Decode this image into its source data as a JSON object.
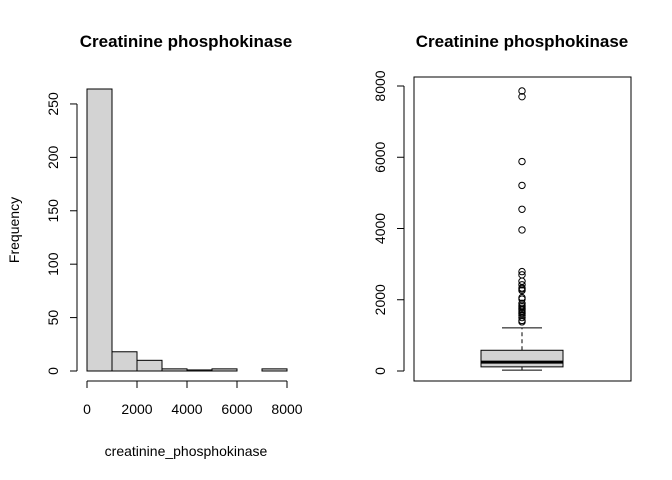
{
  "chart_data": [
    {
      "type": "bar",
      "subtype": "histogram",
      "title": "Creatinine phosphokinase",
      "xlabel": "creatinine_phosphokinase",
      "ylabel": "Frequency",
      "bins": [
        {
          "from": 0,
          "to": 1000,
          "count": 264
        },
        {
          "from": 1000,
          "to": 2000,
          "count": 18
        },
        {
          "from": 2000,
          "to": 3000,
          "count": 10
        },
        {
          "from": 3000,
          "to": 4000,
          "count": 2
        },
        {
          "from": 4000,
          "to": 5000,
          "count": 1
        },
        {
          "from": 5000,
          "to": 6000,
          "count": 2
        },
        {
          "from": 6000,
          "to": 7000,
          "count": 0
        },
        {
          "from": 7000,
          "to": 8000,
          "count": 2
        }
      ],
      "xlim": [
        0,
        8000
      ],
      "ylim": [
        0,
        264
      ],
      "xticks": [
        "0",
        "2000",
        "4000",
        "6000",
        "8000"
      ],
      "yticks": [
        "0",
        "50",
        "100",
        "150",
        "200",
        "250"
      ],
      "bar_color": "#d3d3d3"
    },
    {
      "type": "boxplot",
      "title": "Creatinine phosphokinase",
      "whisker_low": 23,
      "q1": 116,
      "median": 250,
      "q3": 582,
      "whisker_high": 1211,
      "outliers": [
        1380,
        1419,
        1500,
        1560,
        1610,
        1640,
        1680,
        1720,
        1760,
        1810,
        1850,
        1900,
        2020,
        2060,
        2260,
        2300,
        2330,
        2420,
        2520,
        2700,
        2790,
        3960,
        4540,
        5210,
        5880,
        7700,
        7860
      ],
      "ylim": [
        -200,
        8200
      ],
      "yticks": [
        "0",
        "2000",
        "4000",
        "6000",
        "8000"
      ],
      "box_color": "#d3d3d3"
    }
  ]
}
